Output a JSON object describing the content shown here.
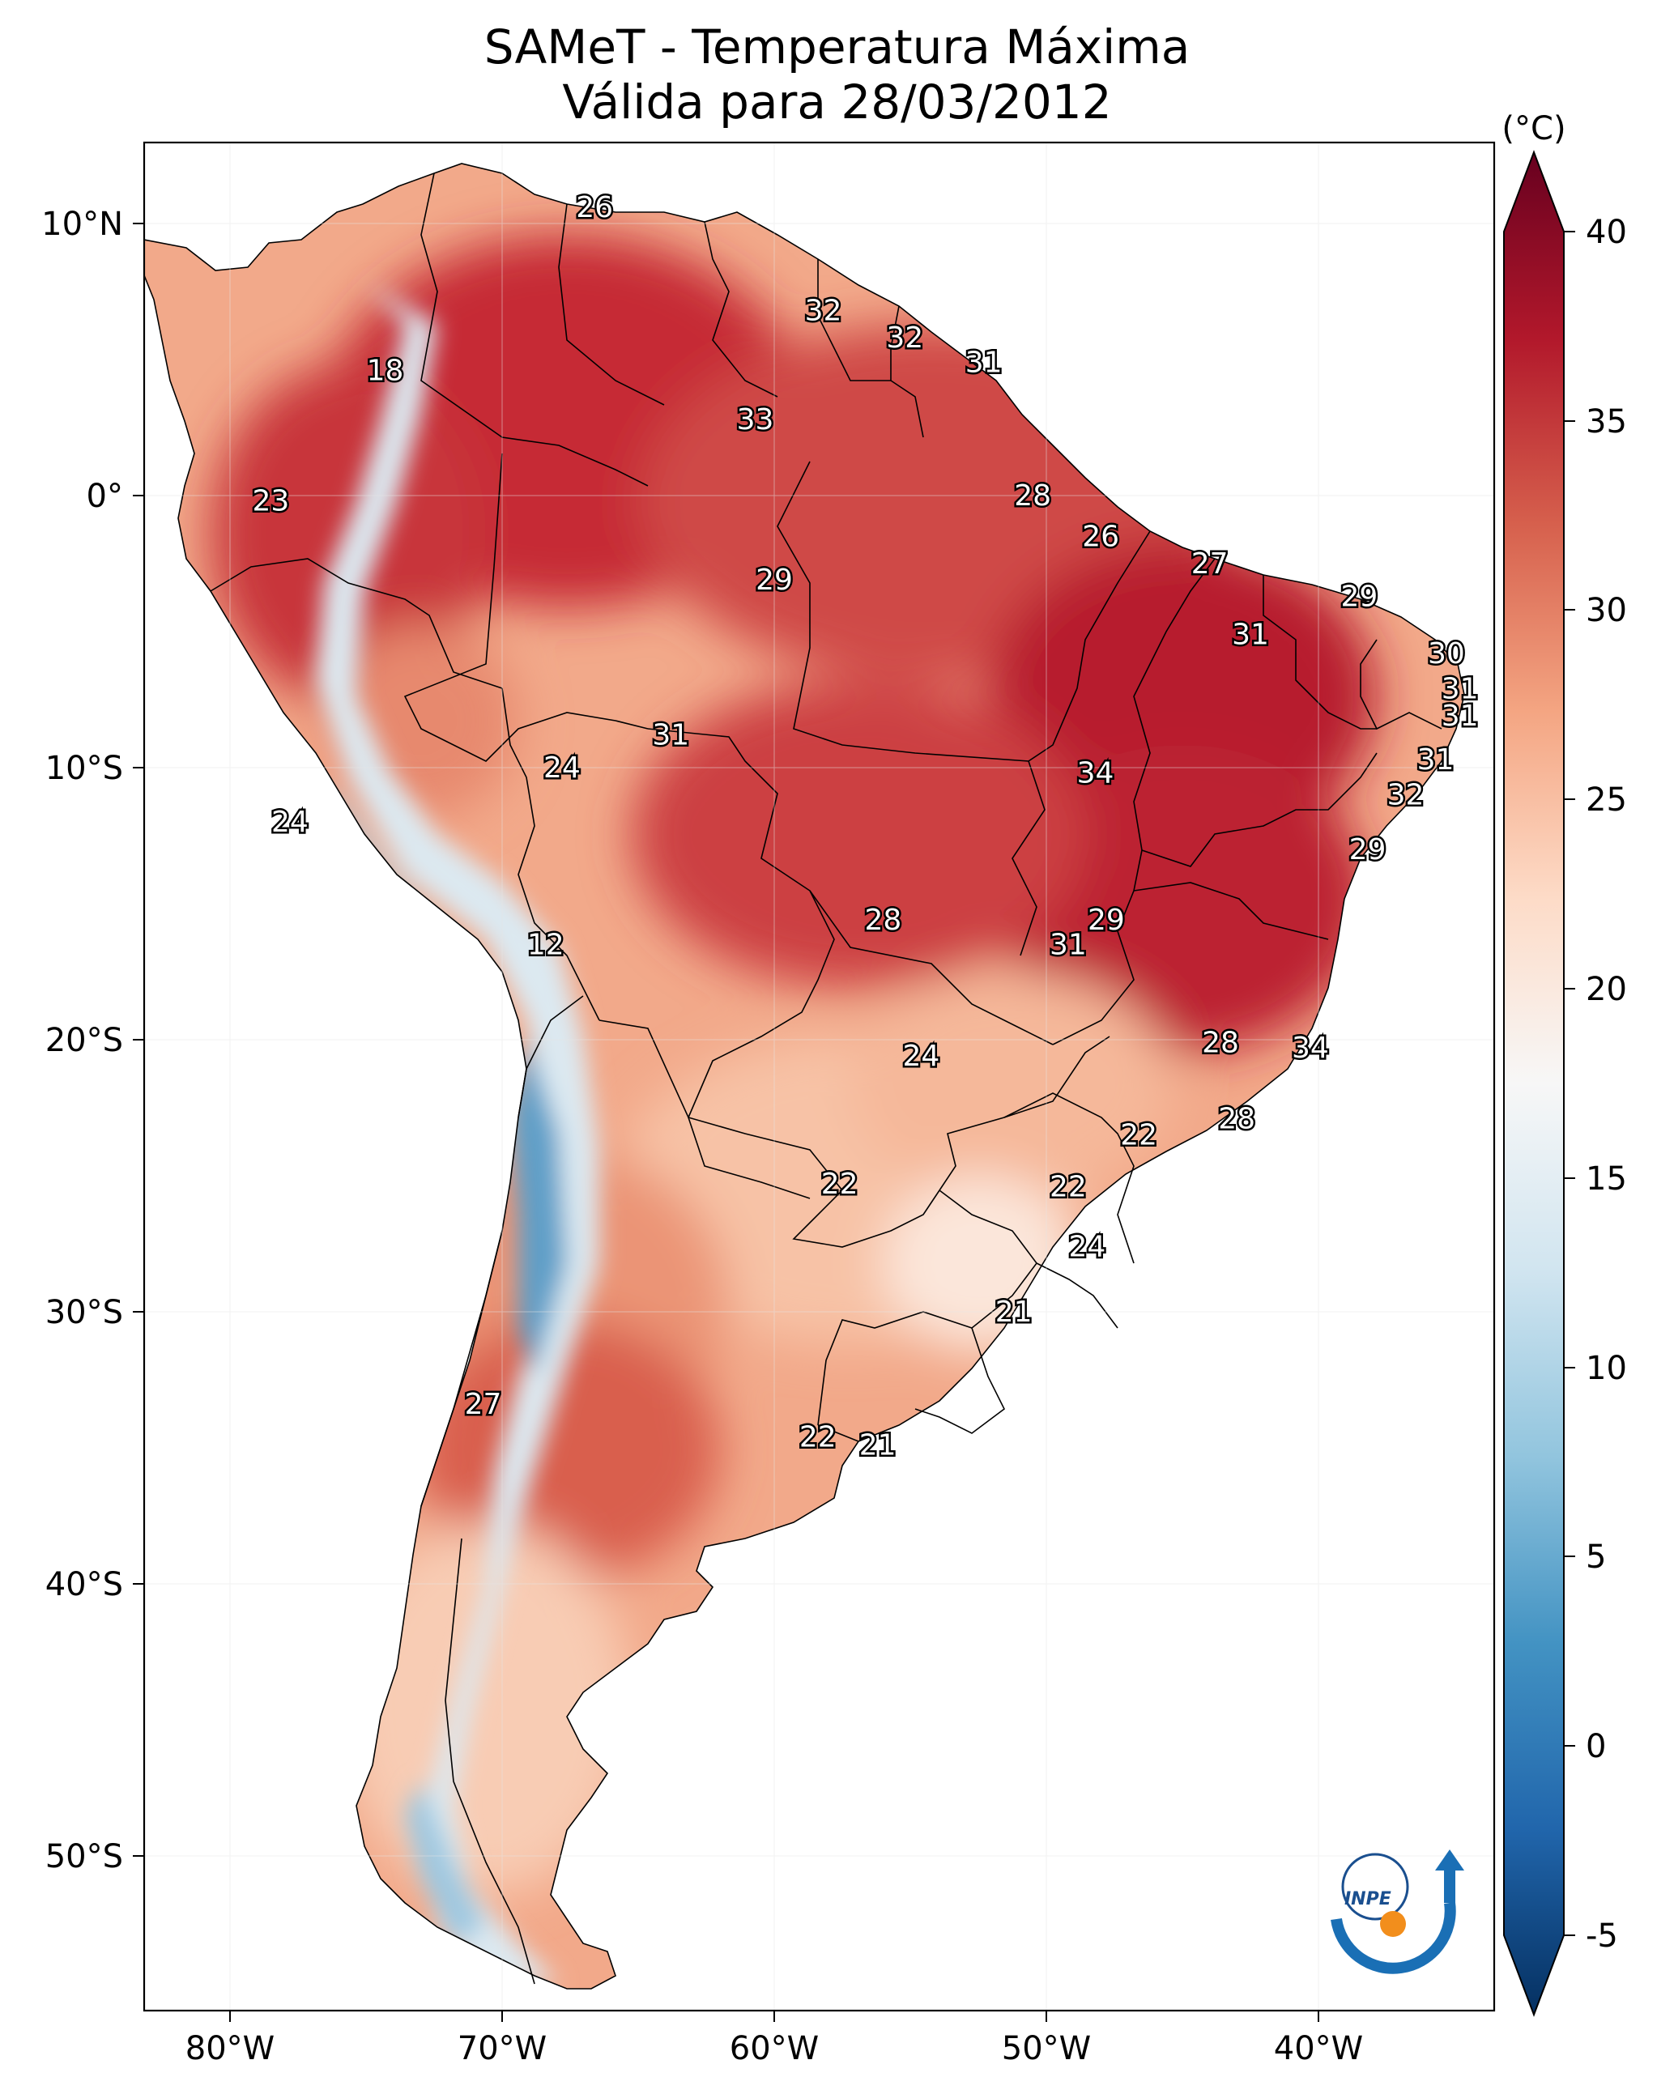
{
  "title": {
    "line1": "SAMeT - Temperatura Máxima",
    "line2": "Válida para 28/03/2012"
  },
  "colorbar": {
    "unit": "(°C)",
    "min": -5,
    "max": 40,
    "ticks": [
      "40",
      "35",
      "30",
      "25",
      "20",
      "15",
      "10",
      "5",
      "0",
      "-5"
    ],
    "colors": [
      "#053061",
      "#2166ac",
      "#4393c3",
      "#92c5de",
      "#d1e5f0",
      "#f7f7f7",
      "#fddbc7",
      "#f4a582",
      "#d6604d",
      "#b2182b",
      "#67001f"
    ]
  },
  "axes": {
    "lon_labels": [
      "80°W",
      "70°W",
      "60°W",
      "50°W",
      "40°W"
    ],
    "lat_labels": [
      "10°N",
      "0°",
      "10°S",
      "20°S",
      "30°S",
      "40°S",
      "50°S"
    ]
  },
  "station_labels": [
    {
      "text": "26",
      "lon": -66.6,
      "lat": 10.6
    },
    {
      "text": "18",
      "lon": -74.3,
      "lat": 4.6
    },
    {
      "text": "32",
      "lon": -58.2,
      "lat": 6.8
    },
    {
      "text": "32",
      "lon": -55.2,
      "lat": 5.8
    },
    {
      "text": "31",
      "lon": -52.3,
      "lat": 4.9
    },
    {
      "text": "33",
      "lon": -60.7,
      "lat": 2.8
    },
    {
      "text": "23",
      "lon": -78.5,
      "lat": -0.2
    },
    {
      "text": "28",
      "lon": -50.5,
      "lat": 0.0
    },
    {
      "text": "26",
      "lon": -48.0,
      "lat": -1.5
    },
    {
      "text": "27",
      "lon": -44.0,
      "lat": -2.5
    },
    {
      "text": "29",
      "lon": -60.0,
      "lat": -3.1
    },
    {
      "text": "29",
      "lon": -38.5,
      "lat": -3.7
    },
    {
      "text": "31",
      "lon": -42.5,
      "lat": -5.1
    },
    {
      "text": "30",
      "lon": -35.3,
      "lat": -5.8
    },
    {
      "text": "31",
      "lon": -34.8,
      "lat": -7.1
    },
    {
      "text": "31",
      "lon": -34.8,
      "lat": -8.1
    },
    {
      "text": "31",
      "lon": -63.8,
      "lat": -8.8
    },
    {
      "text": "24",
      "lon": -67.8,
      "lat": -10.0
    },
    {
      "text": "34",
      "lon": -48.2,
      "lat": -10.2
    },
    {
      "text": "31",
      "lon": -35.7,
      "lat": -9.7
    },
    {
      "text": "32",
      "lon": -36.8,
      "lat": -11.0
    },
    {
      "text": "24",
      "lon": -77.8,
      "lat": -12.0
    },
    {
      "text": "29",
      "lon": -38.2,
      "lat": -13.0
    },
    {
      "text": "28",
      "lon": -56.0,
      "lat": -15.6
    },
    {
      "text": "29",
      "lon": -47.8,
      "lat": -15.6
    },
    {
      "text": "31",
      "lon": -49.2,
      "lat": -16.5
    },
    {
      "text": "12",
      "lon": -68.4,
      "lat": -16.5
    },
    {
      "text": "28",
      "lon": -43.6,
      "lat": -20.1
    },
    {
      "text": "34",
      "lon": -40.3,
      "lat": -20.3
    },
    {
      "text": "24",
      "lon": -54.6,
      "lat": -20.6
    },
    {
      "text": "28",
      "lon": -43.0,
      "lat": -22.9
    },
    {
      "text": "22",
      "lon": -46.6,
      "lat": -23.5
    },
    {
      "text": "22",
      "lon": -57.6,
      "lat": -25.3
    },
    {
      "text": "22",
      "lon": -49.2,
      "lat": -25.4
    },
    {
      "text": "24",
      "lon": -48.5,
      "lat": -27.6
    },
    {
      "text": "21",
      "lon": -51.2,
      "lat": -30.0
    },
    {
      "text": "27",
      "lon": -70.7,
      "lat": -33.4
    },
    {
      "text": "22",
      "lon": -58.4,
      "lat": -34.6
    },
    {
      "text": "21",
      "lon": -56.2,
      "lat": -34.9
    }
  ],
  "logo": {
    "text": "INPE"
  }
}
